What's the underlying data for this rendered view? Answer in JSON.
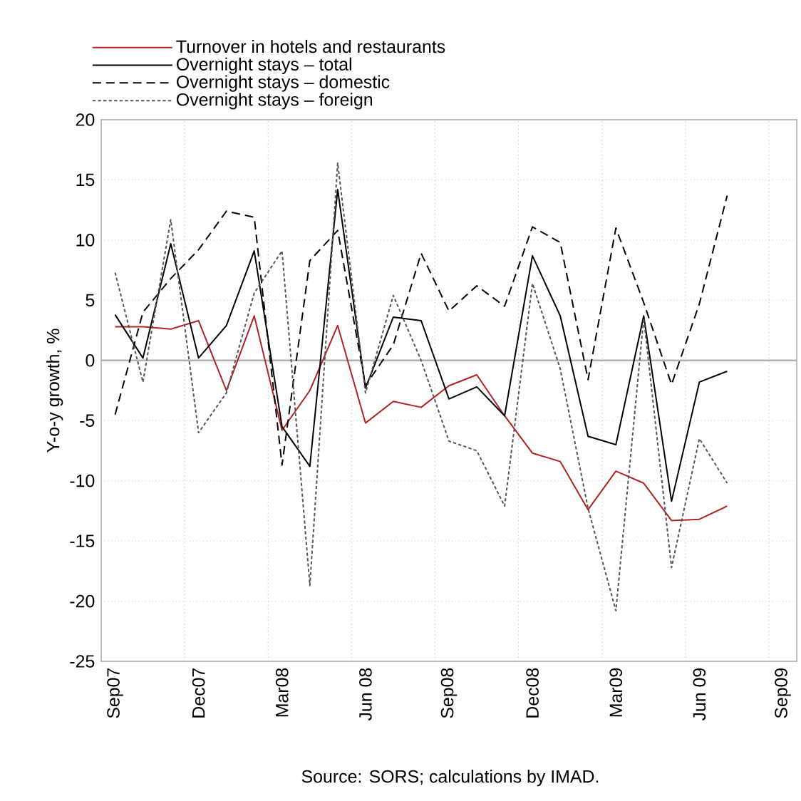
{
  "chart_data": {
    "type": "line",
    "ylabel": "Y-o-y growth, %",
    "categories": [
      "Sep07",
      null,
      null,
      "Dec07",
      null,
      null,
      "Mar08",
      null,
      null,
      "Jun 08",
      null,
      null,
      "Sep08",
      null,
      null,
      "Dec08",
      null,
      null,
      "Mar09",
      null,
      null,
      "Jun 09",
      null,
      null,
      "Sep09"
    ],
    "series": [
      {
        "name": "Turnover in hotels and restaurants",
        "color": "#b22222",
        "line_style": "solid",
        "values": [
          2.8,
          2.8,
          2.6,
          3.3,
          -2.5,
          3.7,
          -5.8,
          -2.5,
          2.9,
          -5.2,
          -3.4,
          -3.9,
          -2.1,
          -1.2,
          -4.6,
          -7.7,
          -8.4,
          -12.4,
          -9.2,
          -10.2,
          -13.3,
          -13.2,
          -12.1,
          null,
          null
        ]
      },
      {
        "name": "Overnight stays – total",
        "color": "#000000",
        "line_style": "solid",
        "values": [
          3.8,
          0.2,
          9.7,
          0.2,
          2.9,
          9.1,
          -5.5,
          -8.8,
          14.2,
          -2.3,
          3.6,
          3.3,
          -3.2,
          -2.2,
          -4.6,
          8.7,
          3.7,
          -6.3,
          -7.0,
          3.7,
          -11.7,
          -1.8,
          -0.9,
          null,
          null
        ]
      },
      {
        "name": "Overnight stays – domestic",
        "color": "#000000",
        "line_style": "dashed",
        "values": [
          -4.5,
          4.0,
          6.8,
          9.2,
          12.4,
          11.9,
          -8.7,
          8.3,
          10.8,
          -2.1,
          1.3,
          8.9,
          4.1,
          6.2,
          4.5,
          11.1,
          9.8,
          -1.6,
          11.0,
          4.8,
          -2.0,
          4.7,
          13.7,
          null,
          null
        ]
      },
      {
        "name": "Overnight stays – foreign",
        "color": "#555555",
        "line_style": "dotted",
        "values": [
          7.3,
          -1.8,
          11.7,
          -6.0,
          -2.7,
          5.6,
          9.1,
          -18.7,
          16.4,
          -2.7,
          5.4,
          0.0,
          -6.7,
          -7.5,
          -12.1,
          6.4,
          -0.7,
          -12.3,
          -20.8,
          3.5,
          -17.2,
          -6.5,
          -10.2,
          null,
          null
        ]
      }
    ],
    "ylim": [
      -25,
      20
    ],
    "yticks": [
      -25,
      -20,
      -15,
      -10,
      -5,
      0,
      5,
      10,
      15,
      20
    ],
    "grid": true,
    "legend": "top",
    "marker": "none",
    "annotations": [
      "Source: SORS; calculations by IMAD."
    ]
  }
}
